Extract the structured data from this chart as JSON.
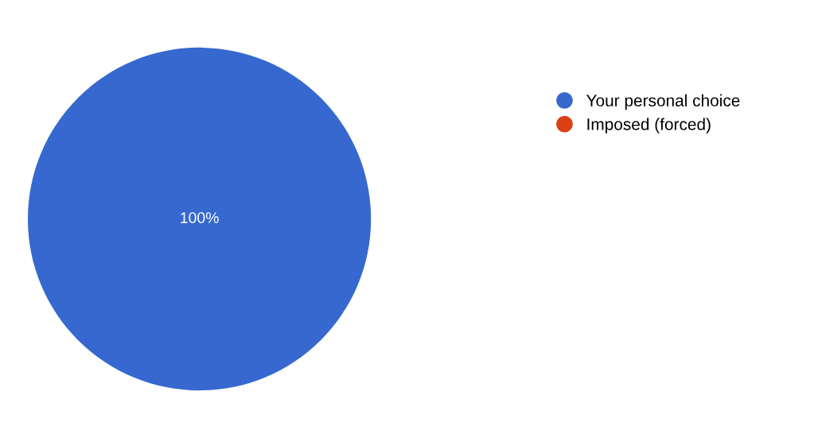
{
  "chart_data": {
    "type": "pie",
    "categories": [
      "Your personal choice",
      "Imposed (forced)"
    ],
    "values": [
      100,
      0
    ],
    "colors": [
      "#3668cf",
      "#dc3f16"
    ],
    "value_labels": [
      "100%",
      null
    ],
    "legend": "top right"
  }
}
